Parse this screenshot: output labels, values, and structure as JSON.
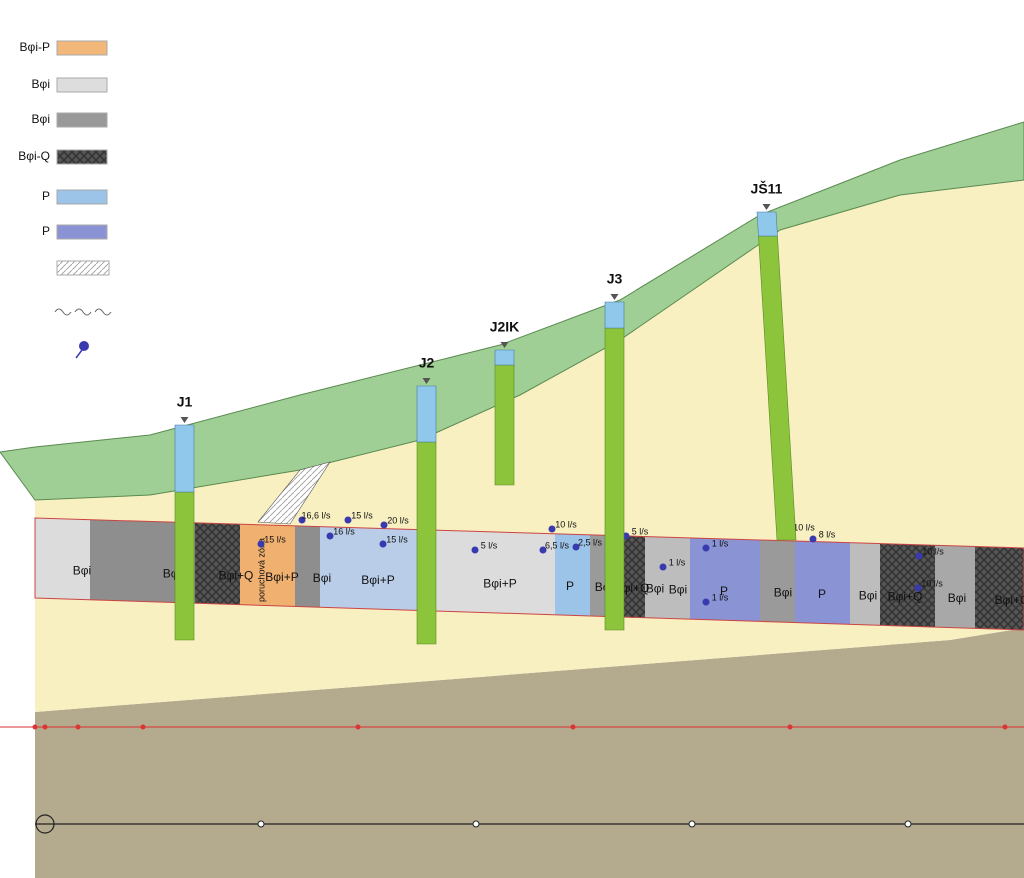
{
  "legend": [
    {
      "label": "Bφi-P"
    },
    {
      "label": "Bφi"
    },
    {
      "label": "Bφi"
    },
    {
      "label": "Bφi-Q"
    },
    {
      "label": "P"
    },
    {
      "label": "P"
    }
  ],
  "boreholes": [
    {
      "label": "J1"
    },
    {
      "label": "J2"
    },
    {
      "label": "J2IK"
    },
    {
      "label": "J3"
    },
    {
      "label": "JŠ11"
    }
  ],
  "fault_zone": "poruchová zóna",
  "tunnel_labels": [
    "Bφi",
    "Bφi",
    "Bφi+Q",
    "Bφi+P",
    "Bφi",
    "Bφi+P",
    "Bφi+P",
    "P",
    "Bφi",
    "Bφi+Q",
    "Bφi",
    "Bφi",
    "P",
    "Bφi",
    "P",
    "Bφi",
    "Bφi+Q",
    "Bφi",
    "Bφi+Q"
  ],
  "flow_labels": [
    "15 l/s",
    "16,6 l/s",
    "16 l/s",
    "15 l/s",
    "20 l/s",
    "15 l/s",
    "5 l/s",
    "10 l/s",
    "6,5 l/s",
    "2,5 l/s",
    "5 l/s",
    "1 l/s",
    "1 l/s",
    "1 l/s",
    "10 l/s",
    "8 l/s",
    "10 l/s",
    "10 l/s"
  ]
}
